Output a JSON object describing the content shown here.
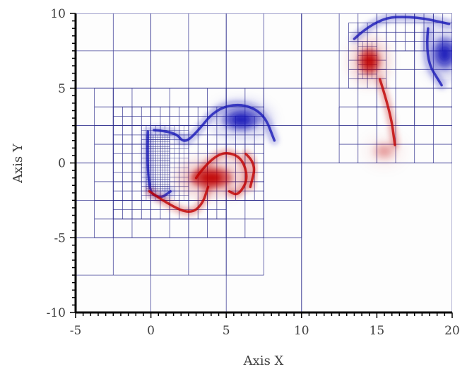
{
  "chart_data": {
    "type": "heatmap",
    "title": "",
    "xlabel": "Axis X",
    "ylabel": "Axis Y",
    "xlim": [
      -5,
      20
    ],
    "ylim": [
      -10,
      10
    ],
    "x_ticks": [
      -5,
      0,
      5,
      10,
      15,
      20
    ],
    "y_ticks": [
      -10,
      -5,
      0,
      5,
      10
    ],
    "x_tick_labels": [
      "-5",
      "0",
      "5",
      "10",
      "15",
      "20"
    ],
    "y_tick_labels": [
      "-10",
      "-5",
      "0",
      "5",
      "10"
    ],
    "grid": false,
    "legend": "none",
    "colors": {
      "positive": "#c00000",
      "negative": "#1a1ab8",
      "mesh": "#2b2b8c",
      "axis": "#000000",
      "text": "#404040"
    },
    "vortices": [
      {
        "sign": "negative",
        "x": 6.0,
        "y": 2.9,
        "rx": 1.5,
        "ry": 0.9,
        "strength": 1.0
      },
      {
        "sign": "positive",
        "x": 4.0,
        "y": -1.0,
        "rx": 1.7,
        "ry": 0.9,
        "strength": 1.0
      },
      {
        "sign": "positive",
        "x": 14.5,
        "y": 6.8,
        "rx": 0.9,
        "ry": 1.1,
        "strength": 1.0
      },
      {
        "sign": "negative",
        "x": 19.5,
        "y": 7.3,
        "rx": 1.0,
        "ry": 1.3,
        "strength": 1.0
      },
      {
        "sign": "positive",
        "x": 15.5,
        "y": 0.8,
        "rx": 1.0,
        "ry": 0.8,
        "strength": 0.25
      }
    ],
    "filaments": [
      {
        "sign": "negative",
        "points": [
          [
            0.2,
            2.2
          ],
          [
            1.6,
            2.1
          ],
          [
            2.2,
            1.3
          ],
          [
            3.0,
            2.0
          ],
          [
            4.3,
            3.6
          ],
          [
            6.0,
            4.0
          ],
          [
            7.5,
            3.3
          ],
          [
            8.2,
            1.5
          ]
        ]
      },
      {
        "sign": "negative",
        "points": [
          [
            -0.2,
            2.1
          ],
          [
            -0.3,
            -1.8
          ],
          [
            0.6,
            -2.4
          ],
          [
            1.3,
            -1.9
          ]
        ]
      },
      {
        "sign": "positive",
        "points": [
          [
            -0.1,
            -1.9
          ],
          [
            1.2,
            -2.8
          ],
          [
            2.6,
            -3.4
          ],
          [
            3.4,
            -2.8
          ],
          [
            3.8,
            -1.6
          ]
        ]
      },
      {
        "sign": "positive",
        "points": [
          [
            3.0,
            -1.0
          ],
          [
            4.2,
            0.7
          ],
          [
            5.9,
            0.6
          ],
          [
            6.5,
            -1.0
          ],
          [
            5.8,
            -2.2
          ],
          [
            5.2,
            -1.9
          ]
        ]
      },
      {
        "sign": "positive",
        "points": [
          [
            6.3,
            0.6
          ],
          [
            7.0,
            0.0
          ],
          [
            6.6,
            -1.6
          ]
        ]
      },
      {
        "sign": "negative",
        "points": [
          [
            13.5,
            8.3
          ],
          [
            15.0,
            9.7
          ],
          [
            17.5,
            9.8
          ],
          [
            19.8,
            9.3
          ]
        ]
      },
      {
        "sign": "negative",
        "points": [
          [
            18.4,
            9.0
          ],
          [
            18.2,
            7.0
          ],
          [
            19.3,
            5.2
          ]
        ]
      },
      {
        "sign": "positive",
        "points": [
          [
            15.2,
            5.6
          ],
          [
            15.9,
            3.4
          ],
          [
            16.2,
            1.2
          ]
        ]
      }
    ],
    "mesh_regions": [
      {
        "x0": -5,
        "x1": 10,
        "y0": -10,
        "y1": 10,
        "size": 5
      },
      {
        "x0": 10,
        "x1": 20,
        "y0": 0,
        "y1": 10,
        "size": 5
      },
      {
        "x0": 10,
        "x1": 20,
        "y0": -10,
        "y1": 0,
        "size": 10
      },
      {
        "x0": -5,
        "x1": 10,
        "y0": 0,
        "y1": 10,
        "size": 2.5
      },
      {
        "x0": -5,
        "x1": 7.5,
        "y0": -7.5,
        "y1": 5,
        "size": 2.5
      },
      {
        "x0": 7.5,
        "x1": 10,
        "y0": -5,
        "y1": 5,
        "size": 2.5
      },
      {
        "x0": -3.75,
        "x1": 7.5,
        "y0": -5,
        "y1": 5,
        "size": 1.25
      },
      {
        "x0": 10,
        "x1": 20,
        "y0": 2.5,
        "y1": 10,
        "size": 2.5
      },
      {
        "x0": 13.75,
        "x1": 20,
        "y0": 3.75,
        "y1": 10,
        "size": 1.25
      },
      {
        "x0": 12.5,
        "x1": 20,
        "y0": 0,
        "y1": 3.75,
        "size": 1.25
      },
      {
        "x0": -2.5,
        "x1": 5,
        "y0": -3.75,
        "y1": 3.75,
        "size": 0.625
      },
      {
        "x0": 5,
        "x1": 7.5,
        "y0": -2.5,
        "y1": 3.125,
        "size": 0.625
      },
      {
        "x0": 13.125,
        "x1": 15.625,
        "y0": 5.0,
        "y1": 9.375,
        "size": 0.625
      },
      {
        "x0": 15.625,
        "x1": 20,
        "y0": 7.5,
        "y1": 10,
        "size": 0.625
      },
      {
        "x0": -0.625,
        "x1": 2.5,
        "y0": -2.5,
        "y1": 2.5,
        "size": 0.3125
      },
      {
        "x0": -0.3125,
        "x1": 1.25,
        "y0": -1.875,
        "y1": 1.875,
        "size": 0.15625
      },
      {
        "x0": 13.75,
        "x1": 15.0,
        "y0": 5.625,
        "y1": 8.125,
        "size": 0.3125
      }
    ]
  }
}
